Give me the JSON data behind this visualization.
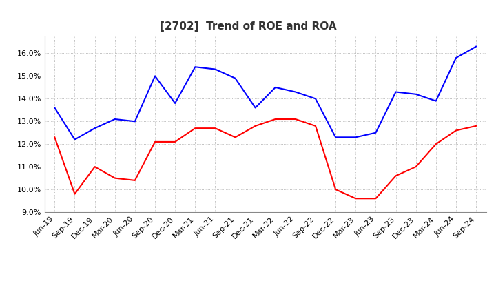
{
  "title": "[2702]  Trend of ROE and ROA",
  "labels": [
    "Jun-19",
    "Sep-19",
    "Dec-19",
    "Mar-20",
    "Jun-20",
    "Sep-20",
    "Dec-20",
    "Mar-21",
    "Jun-21",
    "Sep-21",
    "Dec-21",
    "Mar-22",
    "Jun-22",
    "Sep-22",
    "Dec-22",
    "Mar-23",
    "Jun-23",
    "Sep-23",
    "Dec-23",
    "Mar-24",
    "Jun-24",
    "Sep-24"
  ],
  "ROE": [
    12.3,
    9.8,
    11.0,
    10.5,
    10.4,
    12.1,
    12.1,
    12.7,
    12.7,
    12.3,
    12.8,
    13.1,
    13.1,
    12.8,
    10.0,
    9.6,
    9.6,
    10.6,
    11.0,
    12.0,
    12.6,
    12.8
  ],
  "ROA": [
    13.6,
    12.2,
    12.7,
    13.1,
    13.0,
    15.0,
    13.8,
    15.4,
    15.3,
    14.9,
    13.6,
    14.5,
    14.3,
    14.0,
    12.3,
    12.3,
    12.5,
    14.3,
    14.2,
    13.9,
    15.8,
    16.3
  ],
  "ROE_color": "#ff0000",
  "ROA_color": "#0000ff",
  "ylim": [
    9.0,
    16.75
  ],
  "yticks": [
    9.0,
    10.0,
    11.0,
    12.0,
    13.0,
    14.0,
    15.0,
    16.0
  ],
  "background_color": "#ffffff",
  "grid_color": "#aaaaaa",
  "title_fontsize": 11,
  "axis_fontsize": 8,
  "legend_fontsize": 9,
  "line_width": 1.5
}
